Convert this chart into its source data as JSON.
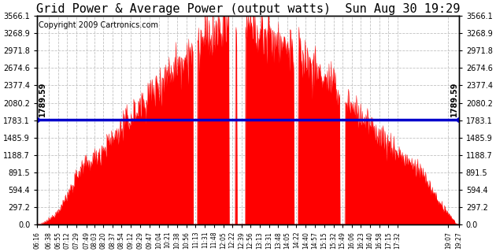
{
  "title": "Grid Power & Average Power (output watts)  Sun Aug 30 19:29",
  "copyright": "Copyright 2009 Cartronics.com",
  "average_value": 1789.59,
  "y_max": 3566.1,
  "y_ticks": [
    0.0,
    297.2,
    594.4,
    891.5,
    1188.7,
    1485.9,
    1783.1,
    2080.2,
    2377.4,
    2674.6,
    2971.8,
    3268.9,
    3566.1
  ],
  "y_tick_labels": [
    "0.0",
    "297.2",
    "594.4",
    "891.5",
    "1188.7",
    "1485.9",
    "1783.1",
    "2080.2",
    "2377.4",
    "2674.6",
    "2971.8",
    "3268.9",
    "3566.1"
  ],
  "x_labels": [
    "06:16",
    "06:38",
    "06:55",
    "07:12",
    "07:29",
    "07:49",
    "08:03",
    "08:20",
    "08:37",
    "08:54",
    "09:12",
    "09:29",
    "09:47",
    "10:04",
    "10:21",
    "10:38",
    "10:56",
    "11:13",
    "11:31",
    "11:48",
    "12:05",
    "12:22",
    "12:39",
    "12:56",
    "13:13",
    "13:31",
    "13:48",
    "14:05",
    "14:22",
    "14:40",
    "14:57",
    "15:15",
    "15:32",
    "15:49",
    "16:06",
    "16:23",
    "16:40",
    "16:58",
    "17:15",
    "17:32",
    "19:07",
    "19:27"
  ],
  "fill_color": "#FF0000",
  "avg_line_color": "#0000CC",
  "background_color": "#FFFFFF",
  "grid_color": "#BBBBBB",
  "title_fontsize": 11,
  "copyright_fontsize": 7,
  "avg_label_fontsize": 7,
  "tick_fontsize": 7,
  "xtick_fontsize": 5.5
}
